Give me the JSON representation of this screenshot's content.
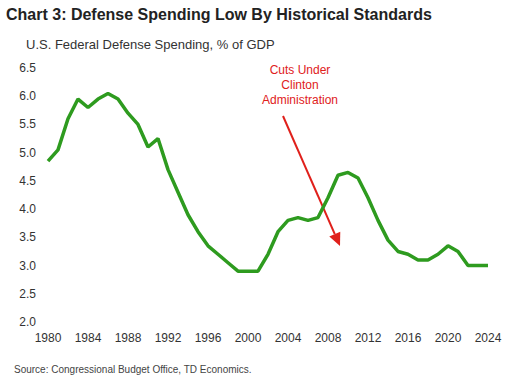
{
  "chart_data": {
    "type": "line",
    "title": "Chart 3: Defense Spending Low By Historical Standards",
    "subtitle": "U.S. Federal Defense Spending, % of GDP",
    "source": "Source: Congressional Budget Office, TD Economics.",
    "annotations": [
      {
        "text": "Cuts Under\nClinton\nAdministration",
        "color": "#e0201b"
      }
    ],
    "x": [
      1980,
      1981,
      1982,
      1983,
      1984,
      1985,
      1986,
      1987,
      1988,
      1989,
      1990,
      1991,
      1992,
      1993,
      1994,
      1995,
      1996,
      1997,
      1998,
      1999,
      2000,
      2001,
      2002,
      2003,
      2004,
      2005,
      2006,
      2007,
      2008,
      2009,
      2010,
      2011,
      2012,
      2013,
      2014,
      2015,
      2016,
      2017,
      2018,
      2019,
      2020,
      2021,
      2022,
      2023,
      2024
    ],
    "values": [
      4.85,
      5.05,
      5.6,
      5.95,
      5.8,
      5.95,
      6.05,
      5.95,
      5.7,
      5.5,
      5.1,
      5.25,
      4.7,
      4.3,
      3.9,
      3.6,
      3.35,
      3.2,
      3.05,
      2.9,
      2.9,
      2.9,
      3.2,
      3.6,
      3.8,
      3.85,
      3.8,
      3.85,
      4.2,
      4.6,
      4.65,
      4.55,
      4.2,
      3.8,
      3.45,
      3.25,
      3.2,
      3.1,
      3.1,
      3.2,
      3.35,
      3.25,
      3.0,
      3.0,
      3.0
    ],
    "color": "#2e9b1f",
    "xlim": [
      1980,
      2024
    ],
    "xticks": [
      1980,
      1984,
      1988,
      1992,
      1996,
      2000,
      2004,
      2008,
      2012,
      2016,
      2020,
      2024
    ],
    "ylim": [
      2,
      6.5
    ],
    "yticks": [
      {
        "value": 2,
        "label": "2.0"
      },
      {
        "value": 2.5,
        "label": "2.5"
      },
      {
        "value": 3,
        "label": "3.0"
      },
      {
        "value": 3.5,
        "label": "3.5"
      },
      {
        "value": 4,
        "label": "4.0"
      },
      {
        "value": 4.5,
        "label": "4.5"
      },
      {
        "value": 5,
        "label": "5.0"
      },
      {
        "value": 5.5,
        "label": "5.5"
      },
      {
        "value": 6,
        "label": "6.0"
      },
      {
        "value": 6.5,
        "label": "6.5"
      }
    ],
    "grid": false
  }
}
